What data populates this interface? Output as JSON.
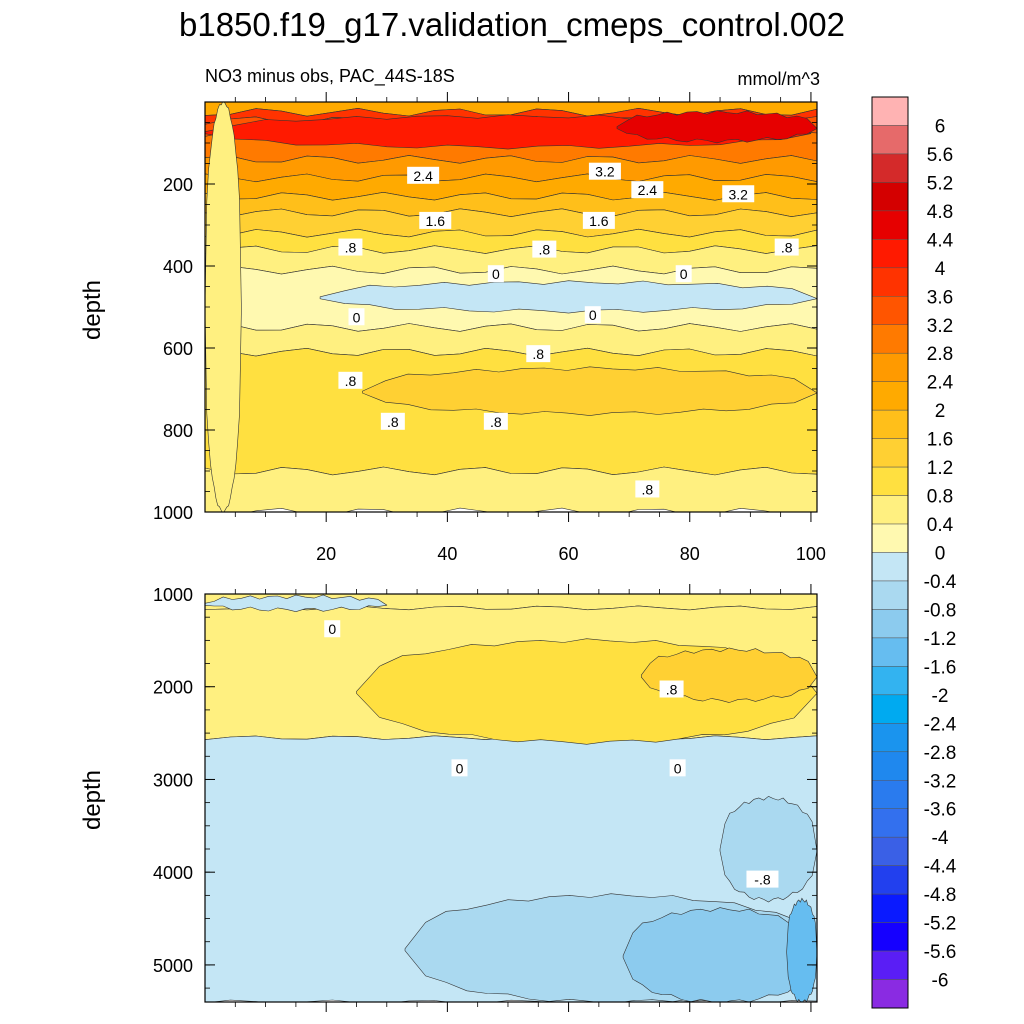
{
  "chart_data": {
    "type": "contour",
    "title": "b1850.f19_g17.validation_cmeps_control.002",
    "subtitle_left": "NO3 minus obs, PAC_44S-18S",
    "subtitle_right": "mmol/m^3",
    "x_ticks": [
      "20",
      "40",
      "60",
      "80",
      "100"
    ],
    "xlim": [
      0,
      101
    ],
    "panels": [
      {
        "name": "upper",
        "ylabel": "depth",
        "ylim": [
          0,
          1000
        ],
        "y_ticks": [
          "200",
          "400",
          "600",
          "800",
          "1000"
        ],
        "bands": [
          {
            "from": 0,
            "to": 25,
            "level": 2.0
          },
          {
            "from": 25,
            "to": 45,
            "level": 3.6
          },
          {
            "from": 45,
            "to": 80,
            "level": 3.2
          },
          {
            "from": 80,
            "to": 140,
            "level": 2.8
          },
          {
            "from": 140,
            "to": 185,
            "level": 2.4
          },
          {
            "from": 185,
            "to": 230,
            "level": 2.0
          },
          {
            "from": 230,
            "to": 270,
            "level": 1.6
          },
          {
            "from": 270,
            "to": 320,
            "level": 1.2
          },
          {
            "from": 320,
            "to": 360,
            "level": 0.8
          },
          {
            "from": 360,
            "to": 410,
            "level": 0.4
          },
          {
            "from": 410,
            "to": 550,
            "level": 0.0
          },
          {
            "from": 550,
            "to": 610,
            "level": 0.4
          },
          {
            "from": 610,
            "to": 900,
            "level": 0.8
          },
          {
            "from": 900,
            "to": 1000,
            "level": 0.4
          }
        ],
        "patches": [
          {
            "x0": 0,
            "x1": 100,
            "y0": 35,
            "y1": 110,
            "level": 4.0,
            "fade_left": true
          },
          {
            "x0": 68,
            "x1": 101,
            "y0": 25,
            "y1": 95,
            "level": 4.4
          },
          {
            "x0": 19,
            "x1": 101,
            "y0": 440,
            "y1": 510,
            "level": -0.4
          },
          {
            "x0": 26,
            "x1": 101,
            "y0": 650,
            "y1": 760,
            "level": 1.2
          },
          {
            "x0": 0,
            "x1": 6,
            "y0": 0,
            "y1": 1000,
            "level": 0.4
          }
        ],
        "contour_labels": [
          {
            "text": "3.2",
            "x": 66,
            "y": 170
          },
          {
            "text": "3.2",
            "x": 88,
            "y": 225
          },
          {
            "text": "2.4",
            "x": 36,
            "y": 180
          },
          {
            "text": "2.4",
            "x": 73,
            "y": 215
          },
          {
            "text": "1.6",
            "x": 38,
            "y": 290
          },
          {
            "text": "1.6",
            "x": 65,
            "y": 290
          },
          {
            "text": ".8",
            "x": 24,
            "y": 355
          },
          {
            "text": ".8",
            "x": 56,
            "y": 360
          },
          {
            "text": ".8",
            "x": 96,
            "y": 355
          },
          {
            "text": "0",
            "x": 48,
            "y": 420
          },
          {
            "text": "0",
            "x": 79,
            "y": 420
          },
          {
            "text": "0",
            "x": 25,
            "y": 525
          },
          {
            "text": "0",
            "x": 64,
            "y": 520
          },
          {
            "text": ".8",
            "x": 55,
            "y": 615
          },
          {
            "text": ".8",
            "x": 24,
            "y": 680
          },
          {
            "text": ".8",
            "x": 31,
            "y": 780
          },
          {
            "text": ".8",
            "x": 48,
            "y": 780
          },
          {
            "text": ".8",
            "x": 73,
            "y": 945
          }
        ]
      },
      {
        "name": "lower",
        "ylabel": "depth",
        "ylim": [
          1000,
          5400
        ],
        "y_ticks": [
          "1000",
          "2000",
          "3000",
          "4000",
          "5000"
        ],
        "bands": [
          {
            "from": 1000,
            "to": 1150,
            "level": 0.4
          },
          {
            "from": 1150,
            "to": 2550,
            "level": 0.4
          },
          {
            "from": 2550,
            "to": 5400,
            "level": -0.4
          }
        ],
        "patches": [
          {
            "x0": 25,
            "x1": 101,
            "y0": 1500,
            "y1": 2600,
            "level": 0.8
          },
          {
            "x0": 72,
            "x1": 101,
            "y0": 1600,
            "y1": 2150,
            "level": 1.2
          },
          {
            "x0": 0,
            "x1": 30,
            "y0": 1030,
            "y1": 1170,
            "level": -0.4
          },
          {
            "x0": 33,
            "x1": 101,
            "y0": 4250,
            "y1": 5400,
            "level": -0.8
          },
          {
            "x0": 85,
            "x1": 101,
            "y0": 3200,
            "y1": 4300,
            "level": -0.8
          },
          {
            "x0": 69,
            "x1": 101,
            "y0": 4400,
            "y1": 5400,
            "level": -1.2
          },
          {
            "x0": 96,
            "x1": 101,
            "y0": 4300,
            "y1": 5400,
            "level": -1.6
          }
        ],
        "contour_labels": [
          {
            "text": "0",
            "x": 21,
            "y": 1380
          },
          {
            "text": ".8",
            "x": 77,
            "y": 2030
          },
          {
            "text": "0",
            "x": 42,
            "y": 2880
          },
          {
            "text": "0",
            "x": 78,
            "y": 2880
          },
          {
            "text": "-.8",
            "x": 92,
            "y": 4080
          }
        ]
      }
    ],
    "colorbar": {
      "levels": [
        "6",
        "5.6",
        "5.2",
        "4.8",
        "4.4",
        "4",
        "3.6",
        "3.2",
        "2.8",
        "2.4",
        "2",
        "1.6",
        "1.2",
        "0.8",
        "0.4",
        "0",
        "-0.4",
        "-0.8",
        "-1.2",
        "-1.6",
        "-2",
        "-2.4",
        "-2.8",
        "-3.2",
        "-3.6",
        "-4",
        "-4.4",
        "-4.8",
        "-5.2",
        "-5.6",
        "-6"
      ],
      "colors": [
        "#ffb3b3",
        "#e66a6a",
        "#d42a2a",
        "#d40000",
        "#e60000",
        "#ff1a00",
        "#ff3300",
        "#ff5500",
        "#ff7a00",
        "#ff9a00",
        "#ffaa00",
        "#ffbf1a",
        "#ffd033",
        "#ffe040",
        "#fff080",
        "#fff9b0",
        "#c4e6f5",
        "#aad9f0",
        "#8ccbee",
        "#66bdf0",
        "#33b3f0",
        "#00aaf0",
        "#1a94ee",
        "#1f88ee",
        "#2a7bee",
        "#3370ee",
        "#3a60e6",
        "#2240ee",
        "#0a1aff",
        "#1500ff",
        "#5a1ef5",
        "#8a2be2"
      ]
    }
  }
}
